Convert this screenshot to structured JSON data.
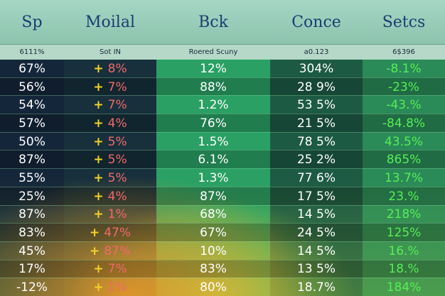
{
  "header": {
    "titles": [
      "Sp",
      "Moilal",
      "Bck",
      "Conce",
      "Setcs"
    ],
    "subtitles": [
      "6111%",
      "Sot IN",
      "Roered Scuny",
      "a0.123",
      "6$396"
    ]
  },
  "table": {
    "rows": [
      [
        "67%",
        {
          "sign": "+",
          "value": "8%"
        },
        "12%",
        "304%",
        "-8.1%"
      ],
      [
        "56%",
        {
          "sign": "+",
          "value": "7%"
        },
        "88%",
        "28 9%",
        "-23%"
      ],
      [
        "54%",
        {
          "sign": "+",
          "value": "7%"
        },
        "1.2%",
        "53 5%",
        "-43.%"
      ],
      [
        "57%",
        {
          "sign": "+",
          "value": "4%"
        },
        "76%",
        "21 5%",
        "-84.8%"
      ],
      [
        "50%",
        {
          "sign": "+",
          "value": "5%"
        },
        "1.5%",
        "78 5%",
        "43.5%"
      ],
      [
        "87%",
        {
          "sign": "+",
          "value": "5%"
        },
        "6.1%",
        "25 2%",
        "865%"
      ],
      [
        "55%",
        {
          "sign": "+",
          "value": "5%"
        },
        "1.3%",
        "77 6%",
        "13.7%"
      ],
      [
        "25%",
        {
          "sign": "+",
          "value": "4%"
        },
        "87%",
        "17 5%",
        "23.%"
      ],
      [
        "87%",
        {
          "sign": "+",
          "value": "1%"
        },
        "68%",
        "14 5%",
        "218%"
      ],
      [
        "83%",
        {
          "sign": "+",
          "value": "47%"
        },
        "67%",
        "24 5%",
        "125%"
      ],
      [
        "45%",
        {
          "sign": "+",
          "value": "87%"
        },
        "10%",
        "14 5%",
        "16.%"
      ],
      [
        "17%",
        {
          "sign": "+",
          "value": "7%"
        },
        "83%",
        "13 5%",
        "18.%"
      ],
      [
        "-12%",
        {
          "sign": "+",
          "value": "1%"
        },
        "80%",
        "18.7%",
        "184%"
      ]
    ]
  }
}
